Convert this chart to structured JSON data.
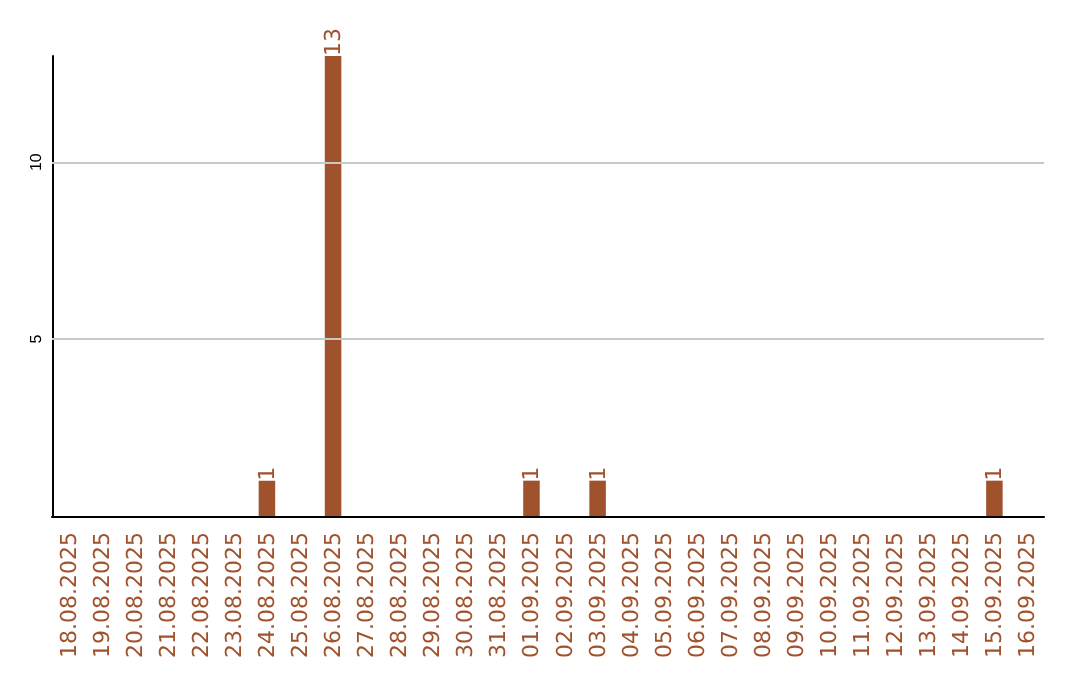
{
  "chart_data": {
    "type": "bar",
    "categories": [
      "18.08.2025",
      "19.08.2025",
      "20.08.2025",
      "21.08.2025",
      "22.08.2025",
      "23.08.2025",
      "24.08.2025",
      "25.08.2025",
      "26.08.2025",
      "27.08.2025",
      "28.08.2025",
      "29.08.2025",
      "30.08.2025",
      "31.08.2025",
      "01.09.2025",
      "02.09.2025",
      "03.09.2025",
      "04.09.2025",
      "05.09.2025",
      "06.09.2025",
      "07.09.2025",
      "08.09.2025",
      "09.09.2025",
      "10.09.2025",
      "11.09.2025",
      "12.09.2025",
      "13.09.2025",
      "14.09.2025",
      "15.09.2025",
      "16.09.2025"
    ],
    "values": [
      0,
      0,
      0,
      0,
      0,
      0,
      1,
      0,
      13,
      0,
      0,
      0,
      0,
      0,
      1,
      0,
      1,
      0,
      0,
      0,
      0,
      0,
      0,
      0,
      0,
      0,
      0,
      0,
      1,
      0
    ],
    "value_labels": [
      null,
      null,
      null,
      null,
      null,
      null,
      "1",
      null,
      "13",
      null,
      null,
      null,
      null,
      null,
      "1",
      null,
      "1",
      null,
      null,
      null,
      null,
      null,
      null,
      null,
      null,
      null,
      null,
      null,
      "1",
      null
    ],
    "color": "#a0522d",
    "ylim": [
      0,
      13
    ],
    "yticks": [
      5,
      10
    ],
    "grid": "y"
  }
}
